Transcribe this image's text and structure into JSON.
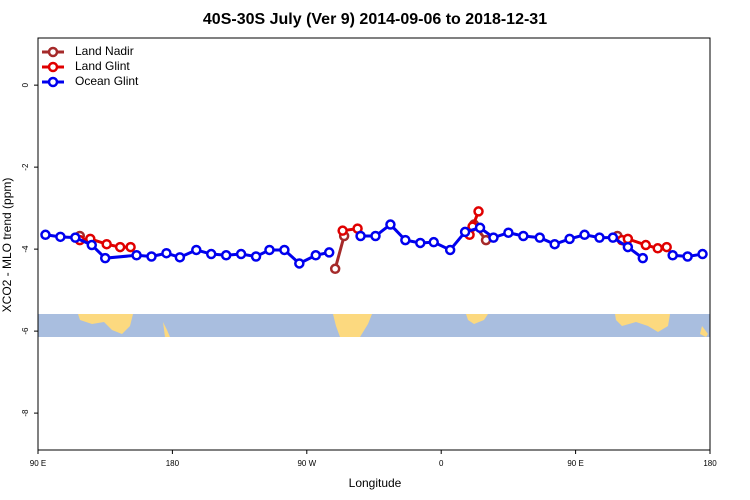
{
  "chart_data": {
    "type": "line",
    "title": "40S-30S July (Ver 9)   2014-09-06 to 2018-12-31",
    "x_label": "Longitude",
    "y_label": "XCO2 - MLO trend (ppm)",
    "xlim": [
      90,
      540
    ],
    "ylim": [
      -8.9,
      1.15
    ],
    "xticks": [
      {
        "value": 90,
        "label": "90 E"
      },
      {
        "value": 180,
        "label": "180"
      },
      {
        "value": 270,
        "label": "90 W"
      },
      {
        "value": 360,
        "label": "0"
      },
      {
        "value": 450,
        "label": "90 E"
      },
      {
        "value": 540,
        "label": "180"
      }
    ],
    "yticks": [
      0,
      -2,
      -4,
      -6,
      -8
    ],
    "legend": "top-left",
    "series": [
      {
        "name": "Land Nadir",
        "color": "#a52a2a",
        "x": [
          118,
          null,
          289,
          295,
          null,
          382,
          390,
          null,
          478
        ],
        "values": [
          -3.68,
          null,
          -4.48,
          -3.68,
          null,
          -3.4,
          -3.78,
          null,
          -3.68
        ]
      },
      {
        "name": "Land Glint",
        "color": "#e00000",
        "x": [
          118,
          125,
          136,
          145,
          152,
          null,
          294,
          304,
          null,
          379,
          381,
          385,
          null,
          481,
          485,
          497,
          505,
          511
        ],
        "values": [
          -3.78,
          -3.75,
          -3.88,
          -3.95,
          -3.95,
          null,
          -3.55,
          -3.5,
          null,
          -3.65,
          -3.45,
          -3.08,
          null,
          -3.78,
          -3.75,
          -3.9,
          -3.98,
          -3.95
        ]
      },
      {
        "name": "Ocean Glint",
        "color": "#0000ee",
        "x": [
          95,
          105,
          115,
          126,
          135,
          156,
          166,
          176,
          185,
          196,
          206,
          216,
          226,
          236,
          245,
          255,
          265,
          276,
          285,
          null,
          306,
          316,
          326,
          336,
          346,
          355,
          366,
          376,
          386,
          395,
          405,
          415,
          426,
          436,
          446,
          456,
          466,
          475,
          485,
          495,
          null,
          515,
          525,
          535
        ],
        "values": [
          -3.65,
          -3.7,
          -3.72,
          -3.9,
          -4.22,
          -4.15,
          -4.18,
          -4.1,
          -4.2,
          -4.02,
          -4.12,
          -4.15,
          -4.12,
          -4.18,
          -4.02,
          -4.02,
          -4.35,
          -4.15,
          -4.08,
          null,
          -3.68,
          -3.68,
          -3.4,
          -3.78,
          -3.85,
          -3.83,
          -4.02,
          -3.58,
          -3.48,
          -3.72,
          -3.6,
          -3.68,
          -3.72,
          -3.88,
          -3.75,
          -3.65,
          -3.72,
          -3.72,
          -3.95,
          -4.22,
          null,
          -4.15,
          -4.18,
          -4.12
        ]
      }
    ]
  }
}
